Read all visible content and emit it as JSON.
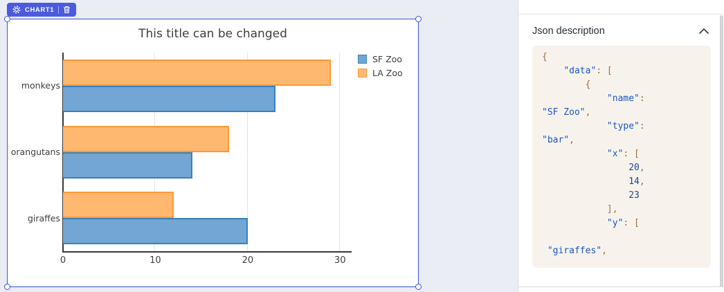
{
  "badge": {
    "label": "CHART1"
  },
  "chart_data": {
    "type": "bar",
    "orientation": "horizontal",
    "title": "This title can be changed",
    "categories": [
      "monkeys",
      "orangutans",
      "giraffes"
    ],
    "series": [
      {
        "name": "SF Zoo",
        "values": [
          23,
          14,
          20
        ],
        "fill": "#73a6d2",
        "border": "#3780bf"
      },
      {
        "name": "LA Zoo",
        "values": [
          29,
          18,
          12
        ],
        "fill": "#ffb870",
        "border": "#ff9933"
      }
    ],
    "xticks": [
      0,
      10,
      20,
      30
    ],
    "xlim": [
      0,
      30.5
    ],
    "grid": true,
    "legend_position": "top-right"
  },
  "json_panel": {
    "heading": "Json description",
    "code_colors": {
      "key": "#1a56c4",
      "string": "#1a56c4",
      "number": "#20469b",
      "punctuation": "#9d6e3f"
    },
    "code_lines": [
      [
        [
          "p",
          "{"
        ]
      ],
      [
        [
          "w",
          "    "
        ],
        [
          "k",
          "\"data\""
        ],
        [
          "p",
          ": ["
        ]
      ],
      [
        [
          "w",
          "        "
        ],
        [
          "p",
          "{"
        ]
      ],
      [
        [
          "w",
          "            "
        ],
        [
          "k",
          "\"name\""
        ],
        [
          "p",
          ":"
        ]
      ],
      [
        [
          "s",
          "\"SF Zoo\""
        ],
        [
          "p",
          ","
        ]
      ],
      [
        [
          "w",
          "            "
        ],
        [
          "k",
          "\"type\""
        ],
        [
          "p",
          ":"
        ]
      ],
      [
        [
          "s",
          "\"bar\""
        ],
        [
          "p",
          ","
        ]
      ],
      [
        [
          "w",
          "            "
        ],
        [
          "k",
          "\"x\""
        ],
        [
          "p",
          ": ["
        ]
      ],
      [
        [
          "w",
          "                "
        ],
        [
          "n",
          "20"
        ],
        [
          "p",
          ","
        ]
      ],
      [
        [
          "w",
          "                "
        ],
        [
          "n",
          "14"
        ],
        [
          "p",
          ","
        ]
      ],
      [
        [
          "w",
          "                "
        ],
        [
          "n",
          "23"
        ]
      ],
      [
        [
          "w",
          "            "
        ],
        [
          "p",
          "],"
        ]
      ],
      [
        [
          "w",
          "            "
        ],
        [
          "k",
          "\"y\""
        ],
        [
          "p",
          ": ["
        ]
      ],
      [],
      [
        [
          "w",
          " "
        ],
        [
          "s",
          "\"giraffes\""
        ],
        [
          "p",
          ","
        ]
      ]
    ]
  }
}
